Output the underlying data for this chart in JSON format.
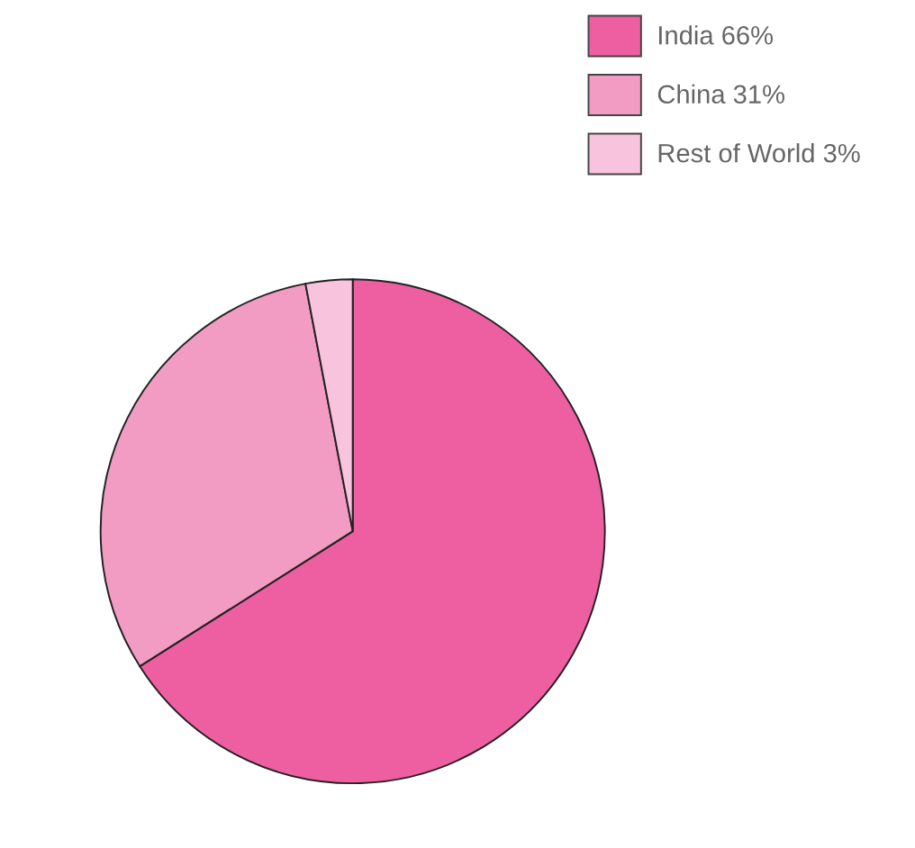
{
  "chart_data": {
    "type": "pie",
    "categories": [
      "India 66%",
      "China 31%",
      "Rest of World 3%"
    ],
    "values": [
      66,
      31,
      3
    ],
    "colors": [
      "#ee5fa2",
      "#f39cc3",
      "#f8c3dc"
    ],
    "legend": "top right"
  }
}
